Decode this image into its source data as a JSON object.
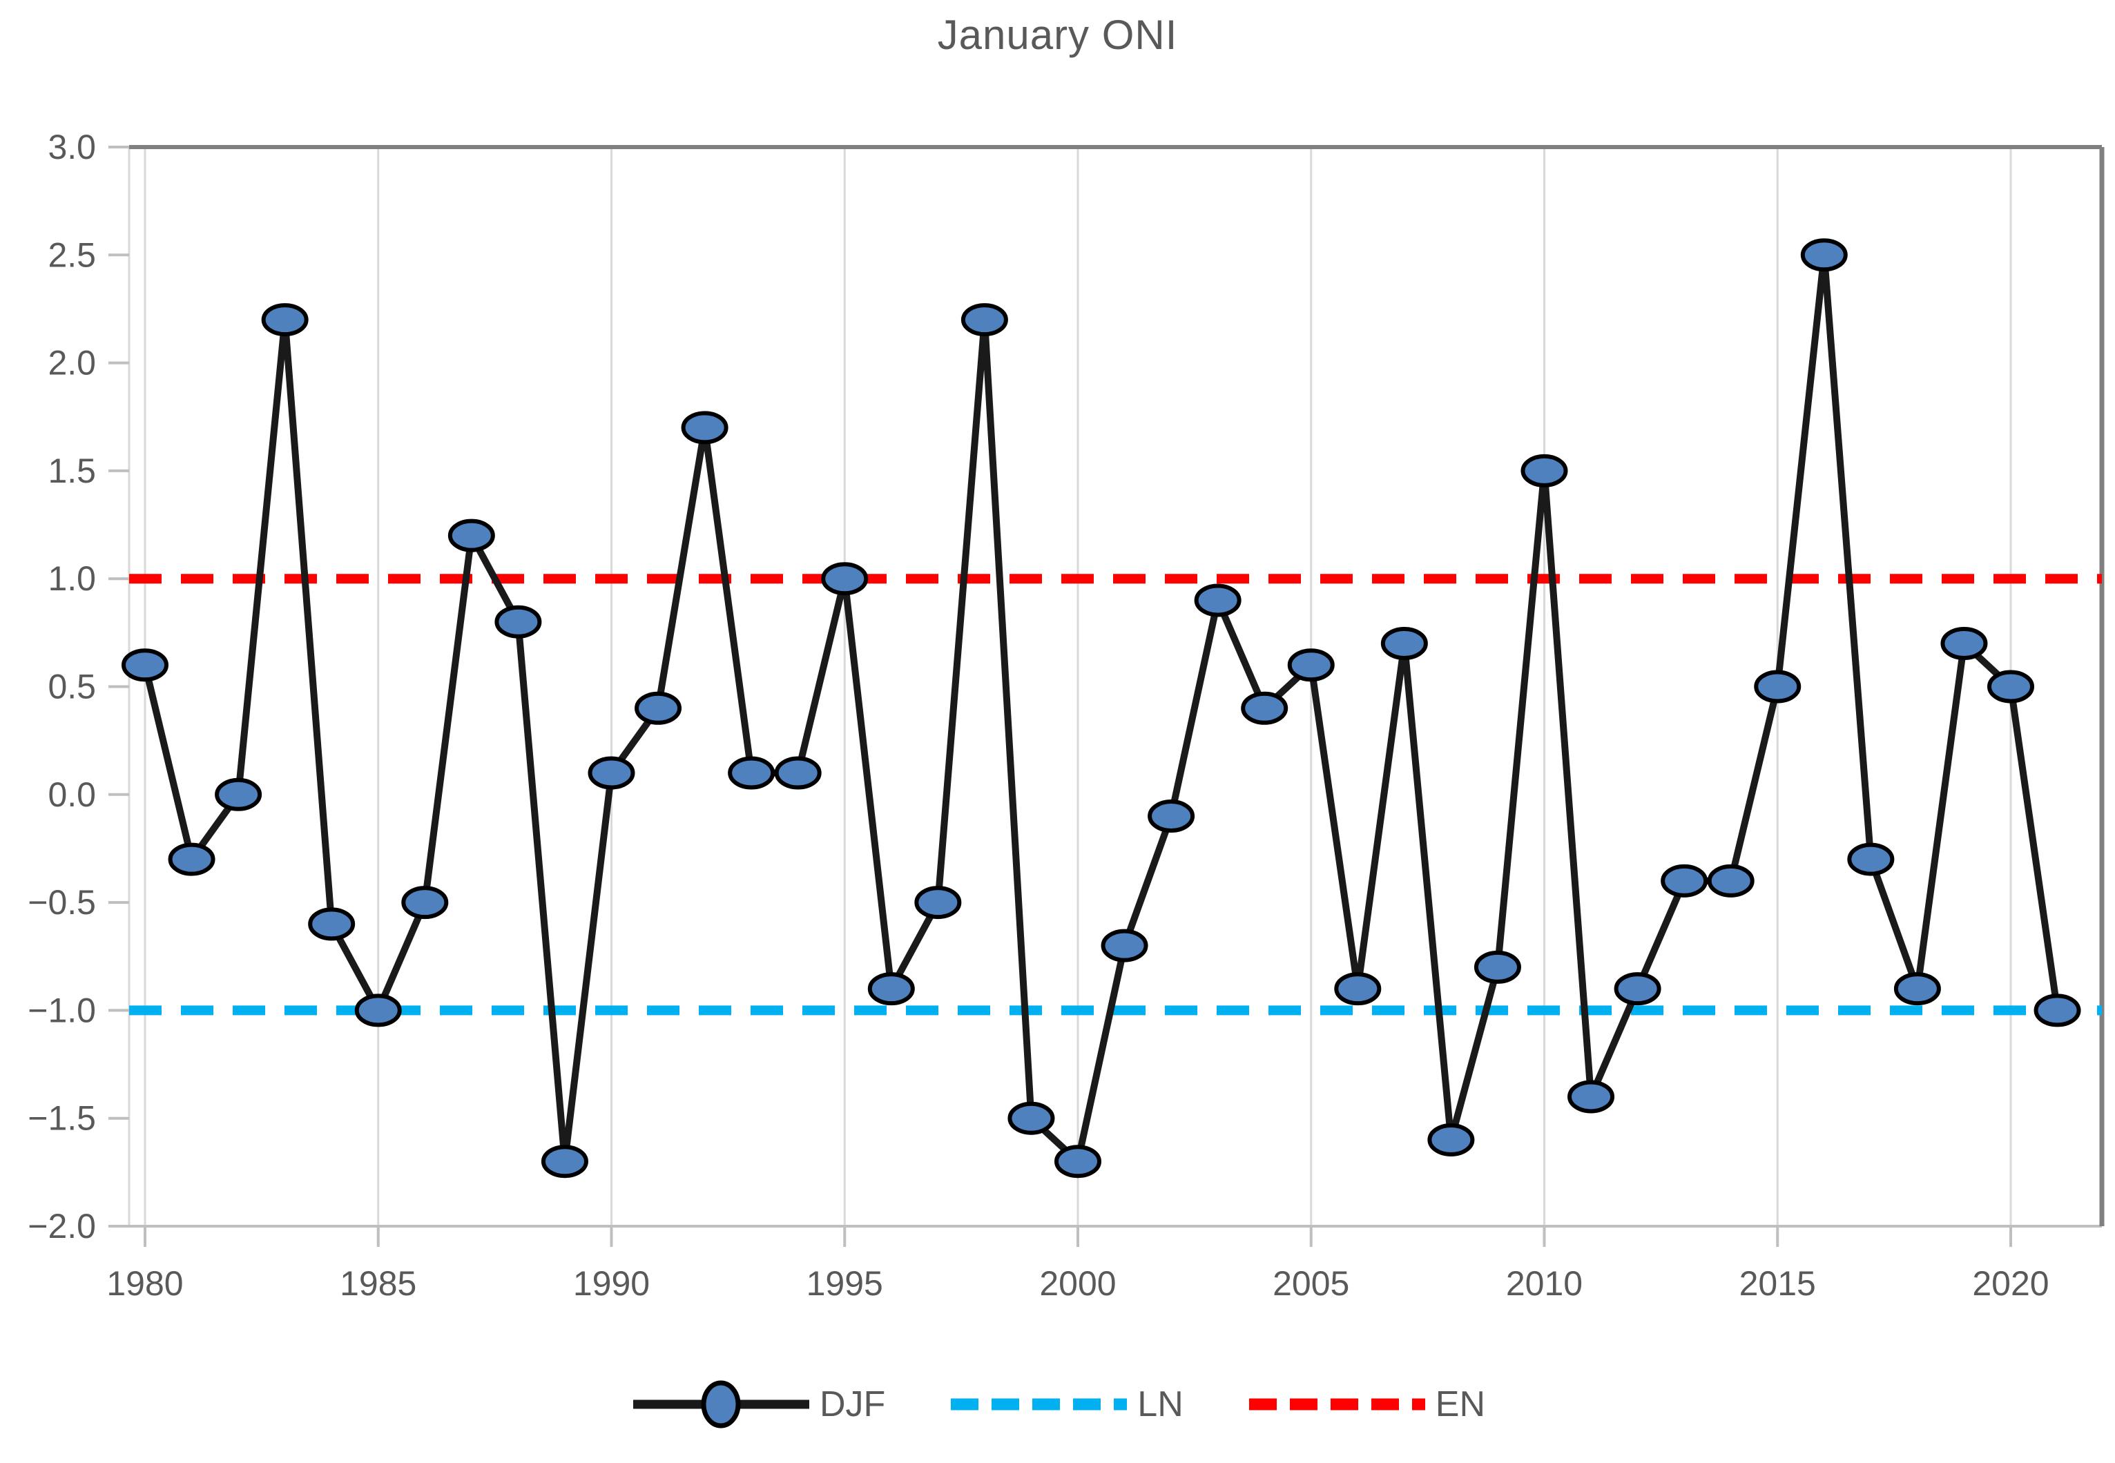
{
  "chart_data": {
    "type": "line",
    "title": "January ONI",
    "x": [
      1980,
      1981,
      1982,
      1983,
      1984,
      1985,
      1986,
      1987,
      1988,
      1989,
      1990,
      1991,
      1992,
      1993,
      1994,
      1995,
      1996,
      1997,
      1998,
      1999,
      2000,
      2001,
      2002,
      2003,
      2004,
      2005,
      2006,
      2007,
      2008,
      2009,
      2010,
      2011,
      2012,
      2013,
      2014,
      2015,
      2016,
      2017,
      2018,
      2019,
      2020,
      2021
    ],
    "series": [
      {
        "name": "DJF",
        "values": [
          0.6,
          -0.3,
          0.0,
          2.2,
          -0.6,
          -1.0,
          -0.5,
          1.2,
          0.8,
          -1.7,
          0.1,
          0.4,
          1.7,
          0.1,
          0.1,
          1.0,
          -0.9,
          -0.5,
          2.2,
          -1.5,
          -1.7,
          -0.7,
          -0.1,
          0.9,
          0.4,
          0.6,
          -0.9,
          0.7,
          -1.6,
          -0.8,
          1.5,
          -1.4,
          -0.9,
          -0.4,
          -0.4,
          0.5,
          2.5,
          -0.3,
          -0.9,
          0.7,
          0.5,
          -1.0
        ],
        "line_color": "#1a1a1a",
        "marker_fill": "#4e81bd",
        "marker_stroke": "#000000"
      }
    ],
    "reference_lines": [
      {
        "name": "LN",
        "value": -1.0,
        "color": "#00b0f0",
        "style": "dashed"
      },
      {
        "name": "EN",
        "value": 1.0,
        "color": "#ff0000",
        "style": "dashed"
      }
    ],
    "ylim": [
      -2.0,
      3.0
    ],
    "y_tick_values": [
      3.0,
      2.5,
      2.0,
      1.5,
      1.0,
      0.5,
      0.0,
      -0.5,
      -1.0,
      -1.5,
      -2.0
    ],
    "y_ticks": [
      "3.0",
      "2.5",
      "2.0",
      "1.5",
      "1.0",
      "0.5",
      "0.0",
      "−0.5",
      "−1.0",
      "−1.5",
      "−2.0"
    ],
    "x_tick_values": [
      1980,
      1985,
      1990,
      1995,
      2000,
      2005,
      2010,
      2015,
      2020
    ],
    "x_ticks": [
      "1980",
      "1985",
      "1990",
      "1995",
      "2000",
      "2005",
      "2010",
      "2015",
      "2020"
    ],
    "grid": "vertical-only",
    "legend_position": "bottom",
    "legend": [
      "DJF",
      "LN",
      "EN"
    ]
  },
  "colors": {
    "text": "#595959",
    "gridline": "#d9d9d9",
    "axis": "#bfbfbf",
    "border": "#808080",
    "background": "#ffffff"
  }
}
